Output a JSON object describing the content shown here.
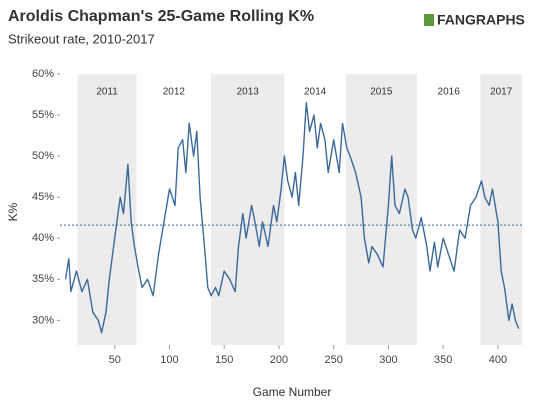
{
  "chart_data": {
    "type": "line",
    "title": "Aroldis Chapman's 25-Game Rolling K%",
    "subtitle": "Strikeout rate, 2010-2017",
    "brand": "FANGRAPHS",
    "x_label": "Game Number",
    "y_label": "K%",
    "xlim": [
      0,
      422
    ],
    "xticks": [
      50,
      100,
      150,
      200,
      250,
      300,
      350,
      400
    ],
    "ylim": [
      27,
      60
    ],
    "yticks": [
      {
        "value": 30,
        "label": "30%"
      },
      {
        "value": 35,
        "label": "35%"
      },
      {
        "value": 40,
        "label": "40%"
      },
      {
        "value": 45,
        "label": "45%"
      },
      {
        "value": 50,
        "label": "50%"
      },
      {
        "value": 55,
        "label": "55%"
      },
      {
        "value": 60,
        "label": "60%"
      }
    ],
    "seasons": [
      {
        "label": "2011",
        "start": 16,
        "end": 70,
        "shaded": true
      },
      {
        "label": "2012",
        "start": 70,
        "end": 138,
        "shaded": false
      },
      {
        "label": "2013",
        "start": 138,
        "end": 205,
        "shaded": true
      },
      {
        "label": "2014",
        "start": 205,
        "end": 261,
        "shaded": false
      },
      {
        "label": "2015",
        "start": 261,
        "end": 326,
        "shaded": true
      },
      {
        "label": "2016",
        "start": 326,
        "end": 384,
        "shaded": false
      },
      {
        "label": "2017",
        "start": 384,
        "end": 422,
        "shaded": true
      }
    ],
    "average": 41.6,
    "series": [
      {
        "color": "#3b6a9a",
        "x": [
          5,
          8,
          10,
          15,
          20,
          25,
          30,
          35,
          38,
          42,
          45,
          50,
          55,
          58,
          62,
          65,
          68,
          72,
          75,
          80,
          85,
          90,
          95,
          100,
          105,
          108,
          112,
          115,
          118,
          122,
          125,
          128,
          132,
          135,
          138,
          142,
          145,
          150,
          155,
          160,
          163,
          167,
          170,
          175,
          178,
          182,
          185,
          190,
          195,
          198,
          202,
          205,
          208,
          212,
          215,
          218,
          222,
          225,
          228,
          232,
          235,
          238,
          242,
          245,
          250,
          255,
          258,
          262,
          265,
          270,
          275,
          278,
          282,
          285,
          290,
          295,
          300,
          303,
          306,
          310,
          315,
          318,
          322,
          325,
          330,
          335,
          338,
          342,
          345,
          350,
          355,
          360,
          365,
          370,
          375,
          380,
          385,
          388,
          392,
          395,
          400,
          403,
          406,
          410,
          413,
          416,
          419
        ],
        "values": [
          35,
          37.5,
          33.5,
          36,
          33.5,
          35,
          31,
          30,
          28.5,
          31,
          35,
          40,
          45,
          43,
          49,
          42,
          39,
          36,
          34,
          35,
          33,
          38,
          42,
          46,
          44,
          51,
          52,
          48,
          54,
          50,
          53,
          45,
          39,
          34,
          33,
          34,
          33,
          36,
          35,
          33.5,
          39,
          43,
          40,
          44,
          42,
          39,
          42,
          39,
          44,
          42,
          46,
          50,
          47,
          45,
          48,
          44,
          50,
          56.5,
          53,
          55,
          51,
          54,
          52,
          48,
          52,
          48,
          54,
          51,
          50,
          48,
          45,
          40,
          37,
          39,
          38,
          36.5,
          44,
          50,
          44,
          43,
          46,
          45,
          41,
          40,
          42.5,
          39,
          36,
          39.5,
          36.5,
          40,
          38,
          36,
          41,
          40,
          44,
          45,
          47,
          45,
          44,
          46,
          42,
          36,
          34,
          30,
          32,
          30,
          29
        ]
      }
    ]
  }
}
